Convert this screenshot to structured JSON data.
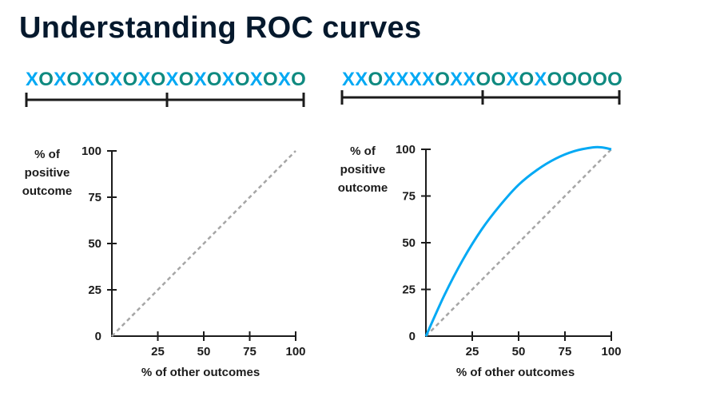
{
  "title": "Understanding ROC curves",
  "colors": {
    "title": "#05192d",
    "x_token": "#03a9f4",
    "o_token": "#0f8a80",
    "curve": "#03a9f4",
    "diagonal": "#a6a6a6",
    "axis": "#1b1b1b"
  },
  "sequences": [
    {
      "text": "XOXOXOXOXOXOXOXOXOXO"
    },
    {
      "text": "XXOXXXXOXXOOXOXOOOOO"
    }
  ],
  "chart_data": [
    {
      "type": "line",
      "xlabel": "% of other outcomes",
      "ylabel": [
        "% of",
        "positive",
        "outcome"
      ],
      "xlim": [
        0,
        100
      ],
      "ylim": [
        0,
        100
      ],
      "xticks": [
        25,
        50,
        75,
        100
      ],
      "yticks": [
        0,
        25,
        50,
        75,
        100
      ],
      "grid": false,
      "diagonal": {
        "style": "dashed",
        "x": [
          0,
          100
        ],
        "y": [
          0,
          100
        ]
      },
      "series": []
    },
    {
      "type": "line",
      "xlabel": "% of other outcomes",
      "ylabel": [
        "% of",
        "positive",
        "outcome"
      ],
      "xlim": [
        0,
        100
      ],
      "ylim": [
        0,
        100
      ],
      "xticks": [
        25,
        50,
        75,
        100
      ],
      "yticks": [
        0,
        25,
        50,
        75,
        100
      ],
      "grid": false,
      "diagonal": {
        "style": "dashed",
        "x": [
          0,
          100
        ],
        "y": [
          0,
          100
        ]
      },
      "series": [
        {
          "x": [
            0,
            10,
            20,
            30,
            40,
            50,
            60,
            70,
            80,
            90,
            95,
            100
          ],
          "y": [
            0,
            22,
            41,
            57,
            70,
            81,
            89,
            95,
            99,
            101,
            101,
            100
          ]
        }
      ]
    }
  ]
}
